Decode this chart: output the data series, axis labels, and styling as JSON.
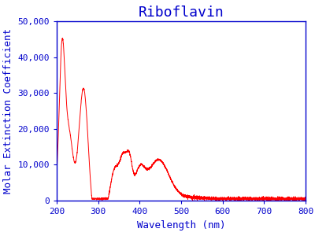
{
  "title": "Riboflavin",
  "xlabel": "Wavelength (nm)",
  "ylabel": "Molar Extinction Coefficient",
  "xlim": [
    200,
    800
  ],
  "ylim": [
    0,
    50000
  ],
  "yticks": [
    0,
    10000,
    20000,
    30000,
    40000,
    50000
  ],
  "xticks": [
    200,
    300,
    400,
    500,
    600,
    700,
    800
  ],
  "line_color": "#ff0000",
  "title_color": "#0000cc",
  "label_color": "#0000cc",
  "spine_color": "#0000cc",
  "background_color": "#ffffff",
  "title_fontsize": 13,
  "label_fontsize": 9,
  "tick_fontsize": 8
}
